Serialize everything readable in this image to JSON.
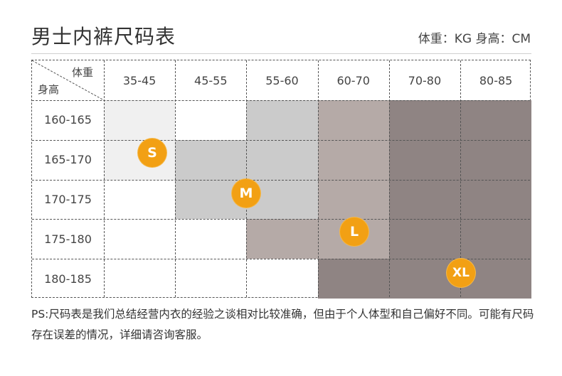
{
  "title": "男士内裤尺码表",
  "unit_note": "体重：KG 身高：CM",
  "table": {
    "corner_weight": "体重",
    "corner_height": "身高",
    "weight_headers": [
      "35-45",
      "45-55",
      "55-60",
      "60-70",
      "70-80",
      "80-85"
    ],
    "height_rows": [
      "160-165",
      "165-170",
      "170-175",
      "175-180",
      "180-185"
    ],
    "size_colors": {
      "S": "#f0f0f0",
      "M": "#cbcbcb",
      "L": "#b5aaa7",
      "XL": "#8f8483"
    },
    "size_map": [
      [
        "S",
        "",
        "M",
        "L",
        "XL",
        "XL"
      ],
      [
        "S",
        "M",
        "M",
        "L",
        "XL",
        "XL"
      ],
      [
        "",
        "M",
        "M",
        "L",
        "XL",
        "XL"
      ],
      [
        "",
        "",
        "L",
        "L",
        "XL",
        "XL"
      ],
      [
        "",
        "",
        "",
        "XL",
        "XL",
        "XL"
      ]
    ],
    "badges": [
      {
        "label": "S"
      },
      {
        "label": "M"
      },
      {
        "label": "L"
      },
      {
        "label": "XL"
      }
    ],
    "badge_color": "#f2a014"
  },
  "footnote": "PS:尺码表是我们总结经营内衣的经验之谈相对比较准确，但由于个人体型和自己偏好不同。可能有尺码存在误差的情况，详细请咨询客服。"
}
